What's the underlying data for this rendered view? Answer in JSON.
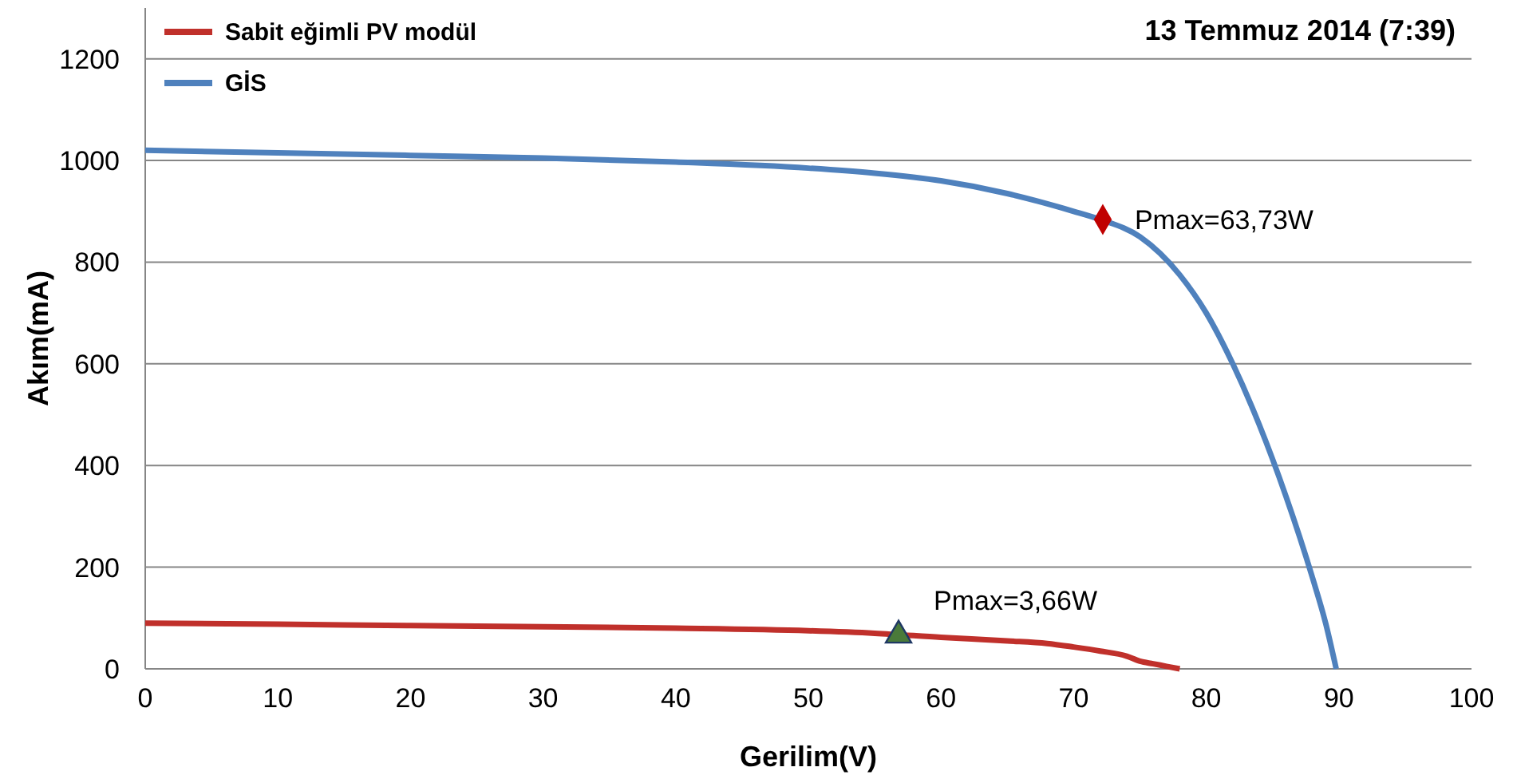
{
  "chart_data": {
    "type": "line",
    "title": "13 Temmuz 2014  (7:39)",
    "xlabel": "Gerilim(V)",
    "ylabel": "Akım(mA)",
    "xlim": [
      0,
      100
    ],
    "xticks": [
      0,
      10,
      20,
      30,
      40,
      50,
      60,
      70,
      80,
      90,
      100
    ],
    "ylim": [
      0,
      1300
    ],
    "yticks": [
      0,
      200,
      400,
      600,
      800,
      1000,
      1200
    ],
    "grid": "y",
    "legend": "top left",
    "line_style": "solid",
    "marker": "none",
    "series": [
      {
        "name": "Sabit eğimli PV modül",
        "color": "#c0302b",
        "x": [
          0,
          10,
          20,
          30,
          40,
          50,
          55,
          60,
          65,
          68,
          70,
          72,
          74,
          75,
          76,
          77,
          78
        ],
        "values": [
          90,
          88,
          85,
          83,
          80,
          75,
          70,
          62,
          55,
          50,
          43,
          35,
          25,
          15,
          10,
          5,
          0
        ]
      },
      {
        "name": "GİS",
        "color": "#4f81bd",
        "x": [
          0,
          10,
          20,
          30,
          40,
          50,
          55,
          60,
          65,
          70,
          72,
          75,
          78,
          80,
          82,
          84,
          86,
          88,
          89,
          89.8
        ],
        "values": [
          1020,
          1015,
          1010,
          1005,
          997,
          985,
          975,
          960,
          935,
          900,
          884,
          850,
          775,
          700,
          600,
          480,
          340,
          180,
          90,
          0
        ]
      },
      {
        "type": "scatter",
        "marker": "triangle",
        "color": "#4a7a3a",
        "x": [
          56.8
        ],
        "values": [
          66
        ]
      },
      {
        "type": "scatter",
        "marker": "diamond",
        "color": "#c00000",
        "x": [
          72.2
        ],
        "values": [
          884
        ]
      }
    ],
    "annotations": [
      {
        "text": "Pmax=63,73W",
        "x": 72.2,
        "y": 884
      },
      {
        "text": "Pmax=3,66W",
        "x": 56.8,
        "y": 66
      }
    ]
  }
}
